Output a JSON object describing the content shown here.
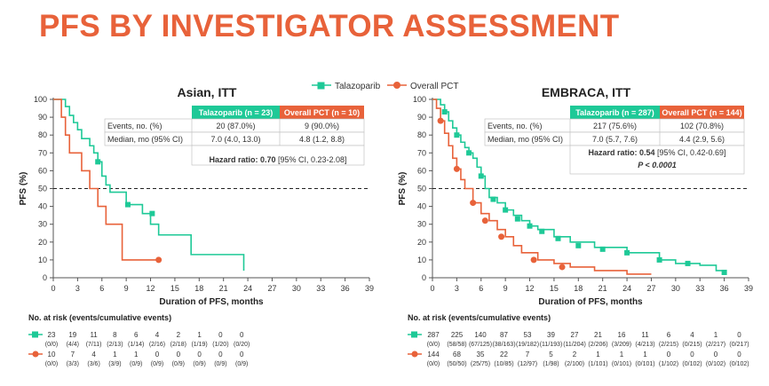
{
  "page": {
    "title": "PFS BY INVESTIGATOR ASSESSMENT"
  },
  "legend": {
    "items": [
      {
        "label": "Talazoparib",
        "color": "#1ec997",
        "marker": "square"
      },
      {
        "label": "Overall PCT",
        "color": "#e8623a",
        "marker": "circle"
      }
    ]
  },
  "colors": {
    "talazoparib": "#1ec997",
    "pct": "#e8623a",
    "header_green": "#1ec997",
    "header_orange": "#e8623a"
  },
  "chart_data": [
    {
      "type": "line",
      "subtype": "kaplan-meier",
      "title": "Asian, ITT",
      "xlabel": "Duration of PFS, months",
      "ylabel": "PFS (%)",
      "xlim": [
        0,
        39
      ],
      "ylim": [
        0,
        100
      ],
      "xticks": [
        "0",
        "3",
        "6",
        "9",
        "12",
        "15",
        "18",
        "21",
        "24",
        "27",
        "30",
        "33",
        "36",
        "39"
      ],
      "yticks": [
        "0",
        "10",
        "20",
        "30",
        "40",
        "50",
        "60",
        "70",
        "80",
        "90",
        "100"
      ],
      "reference_line": {
        "y": 50,
        "style": "dashed"
      },
      "series": [
        {
          "name": "Talazoparib",
          "x": [
            0,
            1.5,
            2,
            2.5,
            3,
            3.5,
            4.5,
            5,
            5.5,
            6,
            6.5,
            7,
            9,
            11,
            12,
            13,
            17,
            23.5
          ],
          "y": [
            100,
            96,
            91,
            87,
            83,
            78,
            74,
            70,
            65,
            57,
            52,
            48,
            41,
            36,
            30,
            24,
            13,
            4
          ],
          "censored_x": [
            5.5,
            9.2,
            12.2
          ],
          "censored_y": [
            65,
            41,
            36
          ]
        },
        {
          "name": "Overall PCT",
          "x": [
            0,
            1,
            1.5,
            2,
            3.5,
            4.5,
            5.5,
            6.5,
            8.5,
            13
          ],
          "y": [
            100,
            90,
            80,
            70,
            60,
            50,
            40,
            30,
            10,
            10
          ],
          "censored_x": [
            13
          ],
          "censored_y": [
            10
          ]
        }
      ],
      "stats_table": {
        "columns": [
          "",
          "Talazoparib (n = 23)",
          "Overall PCT (n = 10)"
        ],
        "rows": [
          [
            "Events, no. (%)",
            "20 (87.0%)",
            "9 (90.0%)"
          ],
          [
            "Median, mo (95% CI)",
            "7.0 (4.0, 13.0)",
            "4.8 (1.2, 8.8)"
          ]
        ],
        "hazard_label": "Hazard ratio: ",
        "hazard_value": "0.70",
        "hazard_ci": " [95% CI, 0.23-2.08]"
      },
      "at_risk": {
        "title": "No. at risk (events/cumulative events)",
        "talazoparib": {
          "counts": [
            "23",
            "19",
            "11",
            "8",
            "6",
            "4",
            "2",
            "1",
            "0",
            "0"
          ],
          "events": [
            "(0/0)",
            "(4/4)",
            "(7/11)",
            "(2/13)",
            "(1/14)",
            "(2/16)",
            "(2/18)",
            "(1/19)",
            "(1/20)",
            "(0/20)"
          ]
        },
        "pct": {
          "counts": [
            "10",
            "7",
            "4",
            "1",
            "1",
            "0",
            "0",
            "0",
            "0",
            "0"
          ],
          "events": [
            "(0/0)",
            "(3/3)",
            "(3/6)",
            "(3/9)",
            "(0/9)",
            "(0/9)",
            "(0/9)",
            "(0/9)",
            "(0/9)",
            "(0/9)"
          ]
        }
      }
    },
    {
      "type": "line",
      "subtype": "kaplan-meier",
      "title": "EMBRACA, ITT",
      "xlabel": "Duration of PFS, months",
      "ylabel": "PFS (%)",
      "xlim": [
        0,
        39
      ],
      "ylim": [
        0,
        100
      ],
      "xticks": [
        "0",
        "3",
        "6",
        "9",
        "12",
        "15",
        "18",
        "21",
        "24",
        "27",
        "30",
        "33",
        "36",
        "39"
      ],
      "yticks": [
        "0",
        "10",
        "20",
        "30",
        "40",
        "50",
        "60",
        "70",
        "80",
        "90",
        "100"
      ],
      "reference_line": {
        "y": 50,
        "style": "dashed"
      },
      "series": [
        {
          "name": "Talazoparib",
          "x": [
            0,
            1,
            1.5,
            2,
            2.5,
            3,
            3.5,
            4,
            4.5,
            5,
            5.5,
            6,
            6.5,
            7,
            8,
            9,
            10,
            11,
            12,
            13,
            15,
            17,
            20,
            24,
            28,
            30,
            33,
            35,
            36
          ],
          "y": [
            100,
            97,
            93,
            88,
            84,
            80,
            76,
            73,
            70,
            67,
            62,
            57,
            50,
            45,
            42,
            38,
            35,
            32,
            29,
            27,
            23,
            20,
            17,
            14,
            10,
            8,
            7,
            4,
            3
          ],
          "censored_x": [
            1.5,
            3,
            4.5,
            6,
            7.5,
            9,
            10.5,
            12,
            13.5,
            15.5,
            18,
            21,
            24,
            28,
            31.5,
            36
          ],
          "censored_y": [
            93,
            80,
            70,
            57,
            44,
            38,
            33,
            29,
            26,
            22,
            18,
            16,
            14,
            10,
            8,
            3
          ]
        },
        {
          "name": "Overall PCT",
          "x": [
            0,
            0.5,
            1,
            1.5,
            2,
            2.5,
            3,
            3.5,
            4,
            5,
            6,
            7,
            8,
            9,
            10,
            11,
            13,
            15,
            17,
            20,
            24,
            27
          ],
          "y": [
            100,
            95,
            88,
            81,
            74,
            67,
            61,
            55,
            50,
            42,
            36,
            32,
            27,
            23,
            18,
            14,
            10,
            8,
            6,
            4,
            2,
            2
          ],
          "censored_x": [
            1,
            3,
            5,
            6.5,
            8.5,
            12.5,
            16
          ],
          "censored_y": [
            88,
            61,
            42,
            32,
            23,
            10,
            6
          ]
        }
      ],
      "stats_table": {
        "columns": [
          "",
          "Talazoparib (n = 287)",
          "Overall PCT (n = 144)"
        ],
        "rows": [
          [
            "Events, no. (%)",
            "217 (75.6%)",
            "102 (70.8%)"
          ],
          [
            "Median, mo (95% CI)",
            "7.0 (5.7, 7.6)",
            "4.4 (2.9, 5.6)"
          ]
        ],
        "hazard_label": "Hazard ratio: ",
        "hazard_value": "0.54",
        "hazard_ci": " [95% CI, 0.42-0.69]",
        "p_value": "P < 0.0001"
      },
      "at_risk": {
        "title": "No. at risk (events/cumulative events)",
        "talazoparib": {
          "counts": [
            "287",
            "225",
            "140",
            "87",
            "53",
            "39",
            "27",
            "21",
            "16",
            "11",
            "6",
            "4",
            "1",
            "0"
          ],
          "events": [
            "(0/0)",
            "(58/58)",
            "(67/125)",
            "(38/163)",
            "(19/182)",
            "(11/193)",
            "(11/204)",
            "(2/206)",
            "(3/209)",
            "(4/213)",
            "(2/215)",
            "(0/215)",
            "(2/217)",
            "(0/217)"
          ]
        },
        "pct": {
          "counts": [
            "144",
            "68",
            "35",
            "22",
            "7",
            "5",
            "2",
            "1",
            "1",
            "1",
            "0",
            "0",
            "0",
            "0"
          ],
          "events": [
            "(0/0)",
            "(50/50)",
            "(25/75)",
            "(10/85)",
            "(12/97)",
            "(1/98)",
            "(2/100)",
            "(1/101)",
            "(0/101)",
            "(0/101)",
            "(1/102)",
            "(0/102)",
            "(0/102)",
            "(0/102)"
          ]
        }
      }
    }
  ]
}
